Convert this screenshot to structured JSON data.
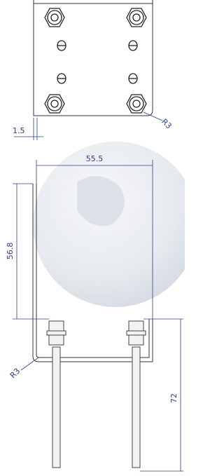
{
  "dimensions": [
    {
      "label": "1.5"
    },
    {
      "label": "R3"
    },
    {
      "label": "55.5"
    },
    {
      "label": "56.8"
    },
    {
      "label": "R3"
    },
    {
      "label": "72"
    }
  ]
}
